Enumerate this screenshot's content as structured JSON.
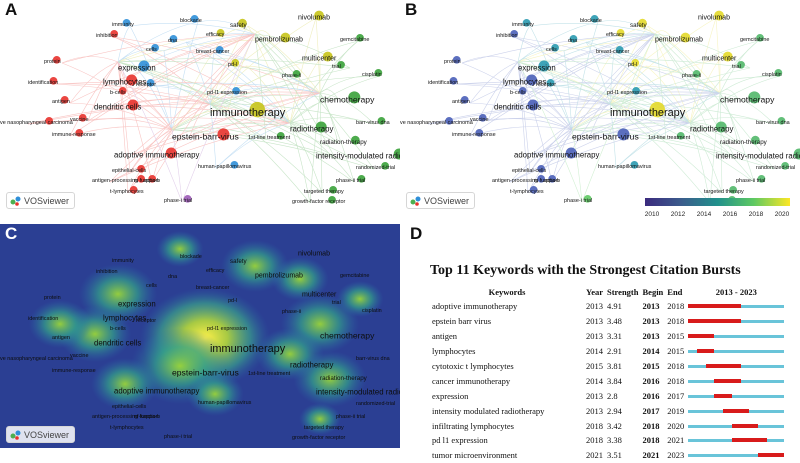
{
  "panel_labels": {
    "a": "A",
    "b": "B",
    "c": "C",
    "d": "D"
  },
  "vosviewer_label": "VOSviewer",
  "colorbar_ticks": [
    "2010",
    "2012",
    "2014",
    "2016",
    "2018",
    "2020"
  ],
  "network_terms": [
    {
      "t": "nivolumab",
      "c": "yellow"
    },
    {
      "t": "blockade",
      "c": "blue"
    },
    {
      "t": "safety",
      "c": "yellow"
    },
    {
      "t": "immunity",
      "c": "blue"
    },
    {
      "t": "inhibition",
      "c": "red"
    },
    {
      "t": "efficacy",
      "c": "yellow"
    },
    {
      "t": "dna",
      "c": "blue"
    },
    {
      "t": "pembrolizumab",
      "c": "yellow"
    },
    {
      "t": "gemcitabine",
      "c": "green"
    },
    {
      "t": "cells",
      "c": "blue"
    },
    {
      "t": "breast-cancer",
      "c": "blue"
    },
    {
      "t": "protein",
      "c": "red"
    },
    {
      "t": "multicenter",
      "c": "yellow"
    },
    {
      "t": "expression",
      "c": "blue"
    },
    {
      "t": "pd-l",
      "c": "yellow"
    },
    {
      "t": "trial",
      "c": "green"
    },
    {
      "t": "identification",
      "c": "red"
    },
    {
      "t": "lymphocytes",
      "c": "red"
    },
    {
      "t": "receptor",
      "c": "blue"
    },
    {
      "t": "phase-ii",
      "c": "green"
    },
    {
      "t": "cisplatin",
      "c": "green"
    },
    {
      "t": "b-cells",
      "c": "red"
    },
    {
      "t": "pd-l1 expression",
      "c": "blue"
    },
    {
      "t": "antigen",
      "c": "red"
    },
    {
      "t": "dendritic cells",
      "c": "red"
    },
    {
      "t": "immunotherapy",
      "c": "yellow"
    },
    {
      "t": "chemotherapy",
      "c": "green"
    },
    {
      "t": "vaccine",
      "c": "red"
    },
    {
      "t": "ve nasopharyngeal carcinoma",
      "c": "red"
    },
    {
      "t": "radiotherapy",
      "c": "green"
    },
    {
      "t": "barr-virus dna",
      "c": "green"
    },
    {
      "t": "immune-response",
      "c": "red"
    },
    {
      "t": "epstein-barr-virus",
      "c": "red"
    },
    {
      "t": "1st-line treatment",
      "c": "green"
    },
    {
      "t": "radiation-therapy",
      "c": "green"
    },
    {
      "t": "intensity-modulated radiotherapy",
      "c": "green"
    },
    {
      "t": "adoptive immunotherapy",
      "c": "red"
    },
    {
      "t": "randomized-trial",
      "c": "green"
    },
    {
      "t": "human-papillomavirus",
      "c": "blue"
    },
    {
      "t": "epithelial-cells",
      "c": "red"
    },
    {
      "t": "phase-ii trial",
      "c": "green"
    },
    {
      "t": "nf-kappa-b",
      "c": "red"
    },
    {
      "t": "antigen-processing function",
      "c": "red"
    },
    {
      "t": "t-lymphocytes",
      "c": "red"
    },
    {
      "t": "targeted therapy",
      "c": "green"
    },
    {
      "t": "phase-i trial",
      "c": "purple"
    },
    {
      "t": "growth-factor receptor",
      "c": "green"
    }
  ],
  "burst": {
    "title": "Top 11 Keywords with the Strongest Citation Bursts",
    "headers": {
      "keywords": "Keywords",
      "year": "Year",
      "strength": "Strength",
      "begin": "Begin",
      "end": "End",
      "range": "2013 - 2023"
    },
    "range_start": 2013,
    "range_end": 2023,
    "rows": [
      {
        "keyword": "adoptive immunotherapy",
        "year": "2013",
        "strength": "4.91",
        "begin": "2013",
        "end": "2018"
      },
      {
        "keyword": "epstein barr virus",
        "year": "2013",
        "strength": "3.48",
        "begin": "2013",
        "end": "2018"
      },
      {
        "keyword": "antigen",
        "year": "2013",
        "strength": "3.31",
        "begin": "2013",
        "end": "2015"
      },
      {
        "keyword": "lymphocytes",
        "year": "2014",
        "strength": "2.91",
        "begin": "2014",
        "end": "2015"
      },
      {
        "keyword": "cytotoxic t lymphocytes",
        "year": "2015",
        "strength": "3.81",
        "begin": "2015",
        "end": "2018"
      },
      {
        "keyword": "cancer immunotherapy",
        "year": "2014",
        "strength": "3.84",
        "begin": "2016",
        "end": "2018"
      },
      {
        "keyword": "expression",
        "year": "2013",
        "strength": "2.8",
        "begin": "2016",
        "end": "2017"
      },
      {
        "keyword": "intensity modulated radiotherapy",
        "year": "2013",
        "strength": "2.94",
        "begin": "2017",
        "end": "2019"
      },
      {
        "keyword": "infiltrating lymphocytes",
        "year": "2018",
        "strength": "3.42",
        "begin": "2018",
        "end": "2020"
      },
      {
        "keyword": "pd l1 expression",
        "year": "2018",
        "strength": "3.38",
        "begin": "2018",
        "end": "2021"
      },
      {
        "keyword": "tumor microenvironment",
        "year": "2021",
        "strength": "3.51",
        "begin": "2021",
        "end": "2023"
      }
    ]
  },
  "colors": {
    "red": "#e8322c",
    "blue": "#2f8fd8",
    "green": "#3aa23a",
    "yellow": "#c7c41a",
    "purple": "#9b59b6",
    "burst_red": "#d81b1b",
    "burst_base": "#69c4d9"
  }
}
